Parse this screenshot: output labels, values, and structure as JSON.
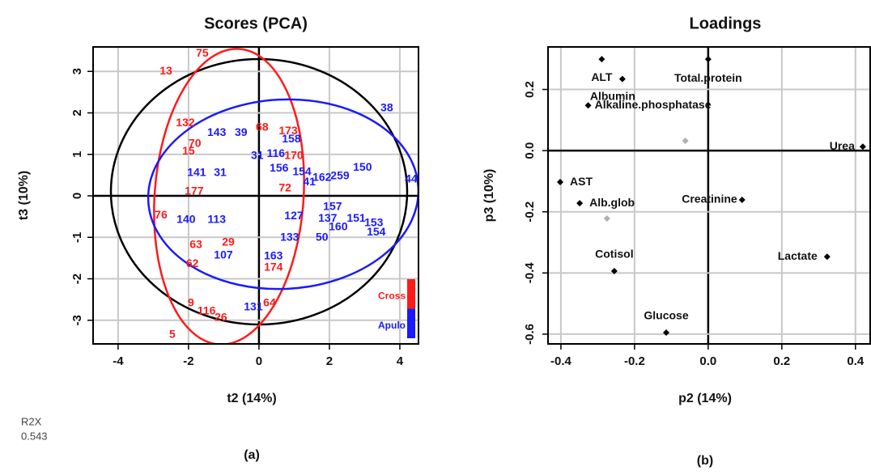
{
  "chart_data": [
    {
      "type": "scatter",
      "title": "Scores (PCA)",
      "x_label": "t2 (14%)",
      "y_label": "t3 (10%)",
      "caption": "(a)",
      "annotations": [
        "R2X",
        "0.543"
      ],
      "xlim": [
        -4.71,
        4.53
      ],
      "ylim": [
        -3.57,
        3.59
      ],
      "xticks": [
        -4,
        -2,
        0,
        2,
        4
      ],
      "yticks": [
        -3,
        -2,
        -1,
        0,
        1,
        2,
        3
      ],
      "grid": true,
      "legend": "bottom-right",
      "series": [
        {
          "name": "Cross",
          "color": "#ff1a1a",
          "labels": [
            "75",
            "13",
            "132",
            "70",
            "15",
            "68",
            "173",
            "170",
            "72",
            "177",
            "76",
            "63",
            "62",
            "29",
            "174",
            "9",
            "116",
            "26",
            "64",
            "5"
          ],
          "x": [
            -1.61,
            -2.64,
            -2.09,
            -1.82,
            -2.0,
            0.09,
            0.83,
            0.99,
            0.74,
            -1.84,
            -2.78,
            -1.79,
            -1.89,
            -0.87,
            0.41,
            -1.93,
            -1.49,
            -1.08,
            0.3,
            -2.46
          ],
          "y": [
            3.43,
            3.0,
            1.75,
            1.25,
            1.07,
            1.64,
            1.56,
            0.96,
            0.18,
            0.1,
            -0.47,
            -1.19,
            -1.64,
            -1.13,
            -1.73,
            -2.59,
            -2.79,
            -2.94,
            -2.59,
            -3.35
          ]
        },
        {
          "name": "Apulo",
          "color": "#1a1aff",
          "labels": [
            "38",
            "143",
            "39",
            "158",
            "31",
            "116",
            "141",
            "31",
            "156",
            "154",
            "162",
            "259",
            "150",
            "41",
            "44",
            "140",
            "113",
            "127",
            "157",
            "137",
            "160",
            "151",
            "153",
            "154",
            "50",
            "133",
            "107",
            "163",
            "131"
          ],
          "x": [
            3.63,
            -1.2,
            -0.51,
            0.92,
            -0.05,
            0.48,
            -1.77,
            -1.1,
            0.57,
            1.22,
            1.79,
            2.3,
            2.94,
            1.43,
            4.32,
            -2.07,
            -1.2,
            0.99,
            2.09,
            1.95,
            2.25,
            2.76,
            3.26,
            3.33,
            1.79,
            0.87,
            -1.01,
            0.41,
            -0.16
          ],
          "y": [
            2.11,
            1.52,
            1.52,
            1.36,
            0.96,
            1.01,
            0.55,
            0.55,
            0.66,
            0.57,
            0.43,
            0.47,
            0.68,
            0.33,
            0.39,
            -0.58,
            -0.58,
            -0.49,
            -0.27,
            -0.55,
            -0.76,
            -0.55,
            -0.66,
            -0.88,
            -1.01,
            -1.01,
            -1.44,
            -1.46,
            -2.69
          ]
        }
      ]
    },
    {
      "type": "loadings",
      "title": "Loadings",
      "x_label": "p2 (14%)",
      "y_label": "p3 (10%)",
      "caption": "(b)",
      "xlim": [
        -0.435,
        0.44
      ],
      "ylim": [
        -0.632,
        0.339
      ],
      "xticks": [
        -0.4,
        -0.2,
        {
          "value": 0,
          "label": "0.0"
        },
        0.2,
        0.4
      ],
      "yticks": [
        -0.6,
        -0.4,
        -0.2,
        {
          "value": 0,
          "label": "0.0"
        },
        0.2
      ],
      "grid": true,
      "series": [
        {
          "color": "#000000",
          "labels": [
            "ALT",
            "Total.protein",
            "Albumin",
            "Alkaline.phosphatase",
            "Urea",
            "AST",
            "Alb.glob",
            "Creatinine",
            "Cotisol",
            "Lactate",
            "Glucose"
          ],
          "x": [
            -0.289,
            0.0,
            -0.233,
            -0.326,
            0.42,
            -0.402,
            -0.349,
            0.092,
            -0.255,
            0.323,
            -0.114
          ],
          "y": [
            0.299,
            0.299,
            0.234,
            0.148,
            0.013,
            -0.103,
            -0.172,
            -0.161,
            -0.394,
            -0.347,
            -0.595
          ]
        },
        {
          "color": "#b0b0b0",
          "x": [
            -0.062,
            -0.275
          ],
          "y": [
            0.032,
            -0.222
          ]
        }
      ]
    }
  ]
}
